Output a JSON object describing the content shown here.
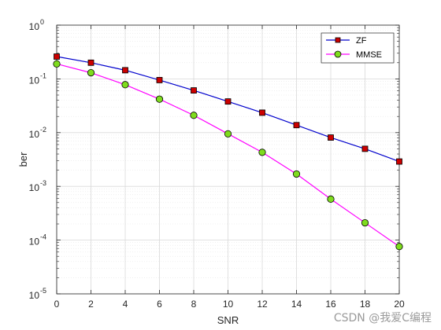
{
  "chart_data": {
    "type": "line",
    "xlabel": "SNR",
    "ylabel": "ber",
    "xlim": [
      0,
      20
    ],
    "ylim": [
      1e-05,
      1
    ],
    "yscale": "log",
    "x_ticks": [
      0,
      2,
      4,
      6,
      8,
      10,
      12,
      14,
      16,
      18,
      20
    ],
    "y_tick_exponents": [
      -5,
      -4,
      -3,
      -2,
      -1,
      0
    ],
    "grid": true,
    "minor_grid": true,
    "legend_position": "top-right",
    "x": [
      0,
      2,
      4,
      6,
      8,
      10,
      12,
      14,
      16,
      18,
      20
    ],
    "series": [
      {
        "name": "ZF",
        "color": "#0000cc",
        "marker": "square",
        "marker_fill": "#cc0000",
        "values": [
          0.26,
          0.2,
          0.145,
          0.095,
          0.061,
          0.038,
          0.0235,
          0.0138,
          0.0081,
          0.005,
          0.0029
        ]
      },
      {
        "name": "MMSE",
        "color": "#ff00ff",
        "marker": "circle",
        "marker_fill": "#7fdc1e",
        "values": [
          0.19,
          0.13,
          0.078,
          0.042,
          0.021,
          0.0095,
          0.0043,
          0.0017,
          0.00058,
          0.00021,
          7.6e-05
        ]
      }
    ]
  },
  "watermark": "CSDN @我爱C编程"
}
